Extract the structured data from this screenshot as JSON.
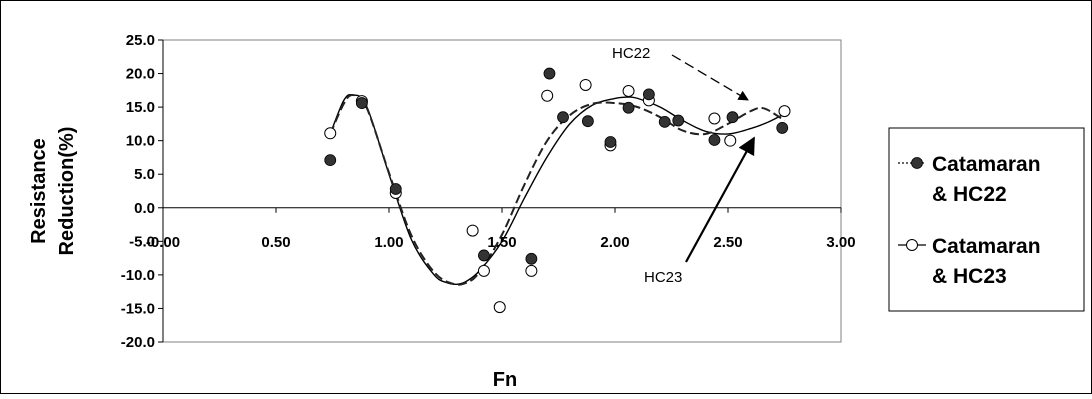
{
  "chart_data": {
    "type": "scatter",
    "title": "",
    "xlabel": "Fn",
    "ylabel": "Resistance Reduction(%)",
    "xlim": [
      0,
      3
    ],
    "ylim": [
      -20,
      25
    ],
    "x_ticks": [
      "-0.00",
      "0.50",
      "1.00",
      "1.50",
      "2.00",
      "2.50",
      "3.00"
    ],
    "y_ticks": [
      "25.0",
      "20.0",
      "15.0",
      "10.0",
      "5.0",
      "0.0",
      "-5.0",
      "-10.0",
      "-15.0",
      "-20.0"
    ],
    "grid": false,
    "legend_position": "right",
    "series": [
      {
        "name": "Catamaran & HC22",
        "legend_lines": [
          "Catamaran",
          "& HC22"
        ],
        "marker": "filled-circle",
        "trend": "dashed",
        "color": "#333333",
        "x": [
          0.74,
          0.88,
          1.03,
          1.42,
          1.63,
          1.71,
          1.77,
          1.88,
          1.98,
          2.06,
          2.15,
          2.22,
          2.28,
          2.44,
          2.52,
          2.74
        ],
        "y": [
          7.1,
          15.6,
          2.8,
          -7.1,
          -7.6,
          20.0,
          13.5,
          12.9,
          9.8,
          14.9,
          16.9,
          12.8,
          13.0,
          10.1,
          13.5,
          11.9
        ]
      },
      {
        "name": "Catamaran & HC23",
        "legend_lines": [
          "Catamaran",
          "& HC23"
        ],
        "marker": "hollow-circle",
        "trend": "solid",
        "color": "#000000",
        "x": [
          0.74,
          0.88,
          1.03,
          1.37,
          1.42,
          1.49,
          1.63,
          1.7,
          1.87,
          1.98,
          2.06,
          2.15,
          2.44,
          2.51,
          2.75
        ],
        "y": [
          11.1,
          15.9,
          2.2,
          -3.4,
          -9.4,
          -14.8,
          -9.4,
          16.7,
          18.3,
          9.3,
          17.4,
          16.0,
          13.3,
          10.0,
          14.4
        ]
      }
    ],
    "trend_curves": {
      "HC22": {
        "x": [
          0.74,
          0.8,
          0.84,
          0.9,
          1.0,
          1.1,
          1.2,
          1.28,
          1.34,
          1.4,
          1.5,
          1.6,
          1.7,
          1.8,
          1.9,
          2.0,
          2.1,
          2.2,
          2.3,
          2.4,
          2.5,
          2.6,
          2.66,
          2.75
        ],
        "y": [
          11.0,
          15.5,
          16.8,
          15.0,
          5.2,
          -4.2,
          -9.6,
          -11.3,
          -11.2,
          -9.6,
          -4.0,
          3.5,
          10.0,
          13.8,
          15.5,
          15.6,
          15.0,
          13.5,
          11.5,
          11.0,
          12.5,
          14.4,
          14.8,
          13.0
        ]
      },
      "HC23": {
        "x": [
          0.74,
          0.8,
          0.84,
          0.9,
          1.0,
          1.1,
          1.2,
          1.26,
          1.3,
          1.34,
          1.4,
          1.5,
          1.6,
          1.7,
          1.8,
          1.9,
          2.0,
          2.06,
          2.1,
          2.2,
          2.3,
          2.4,
          2.5,
          2.6,
          2.68,
          2.75
        ],
        "y": [
          11.0,
          16.0,
          16.8,
          15.2,
          5.0,
          -4.8,
          -10.0,
          -11.2,
          -11.4,
          -11.0,
          -9.4,
          -5.0,
          1.5,
          7.6,
          12.5,
          15.3,
          16.3,
          16.5,
          16.3,
          15.0,
          13.0,
          11.4,
          11.0,
          11.8,
          12.8,
          14.0
        ]
      }
    },
    "annotations": [
      {
        "text": "HC22",
        "points_to": "HC22",
        "arrow": "dashed"
      },
      {
        "text": "HC23",
        "points_to": "HC23",
        "arrow": "solid"
      }
    ]
  }
}
